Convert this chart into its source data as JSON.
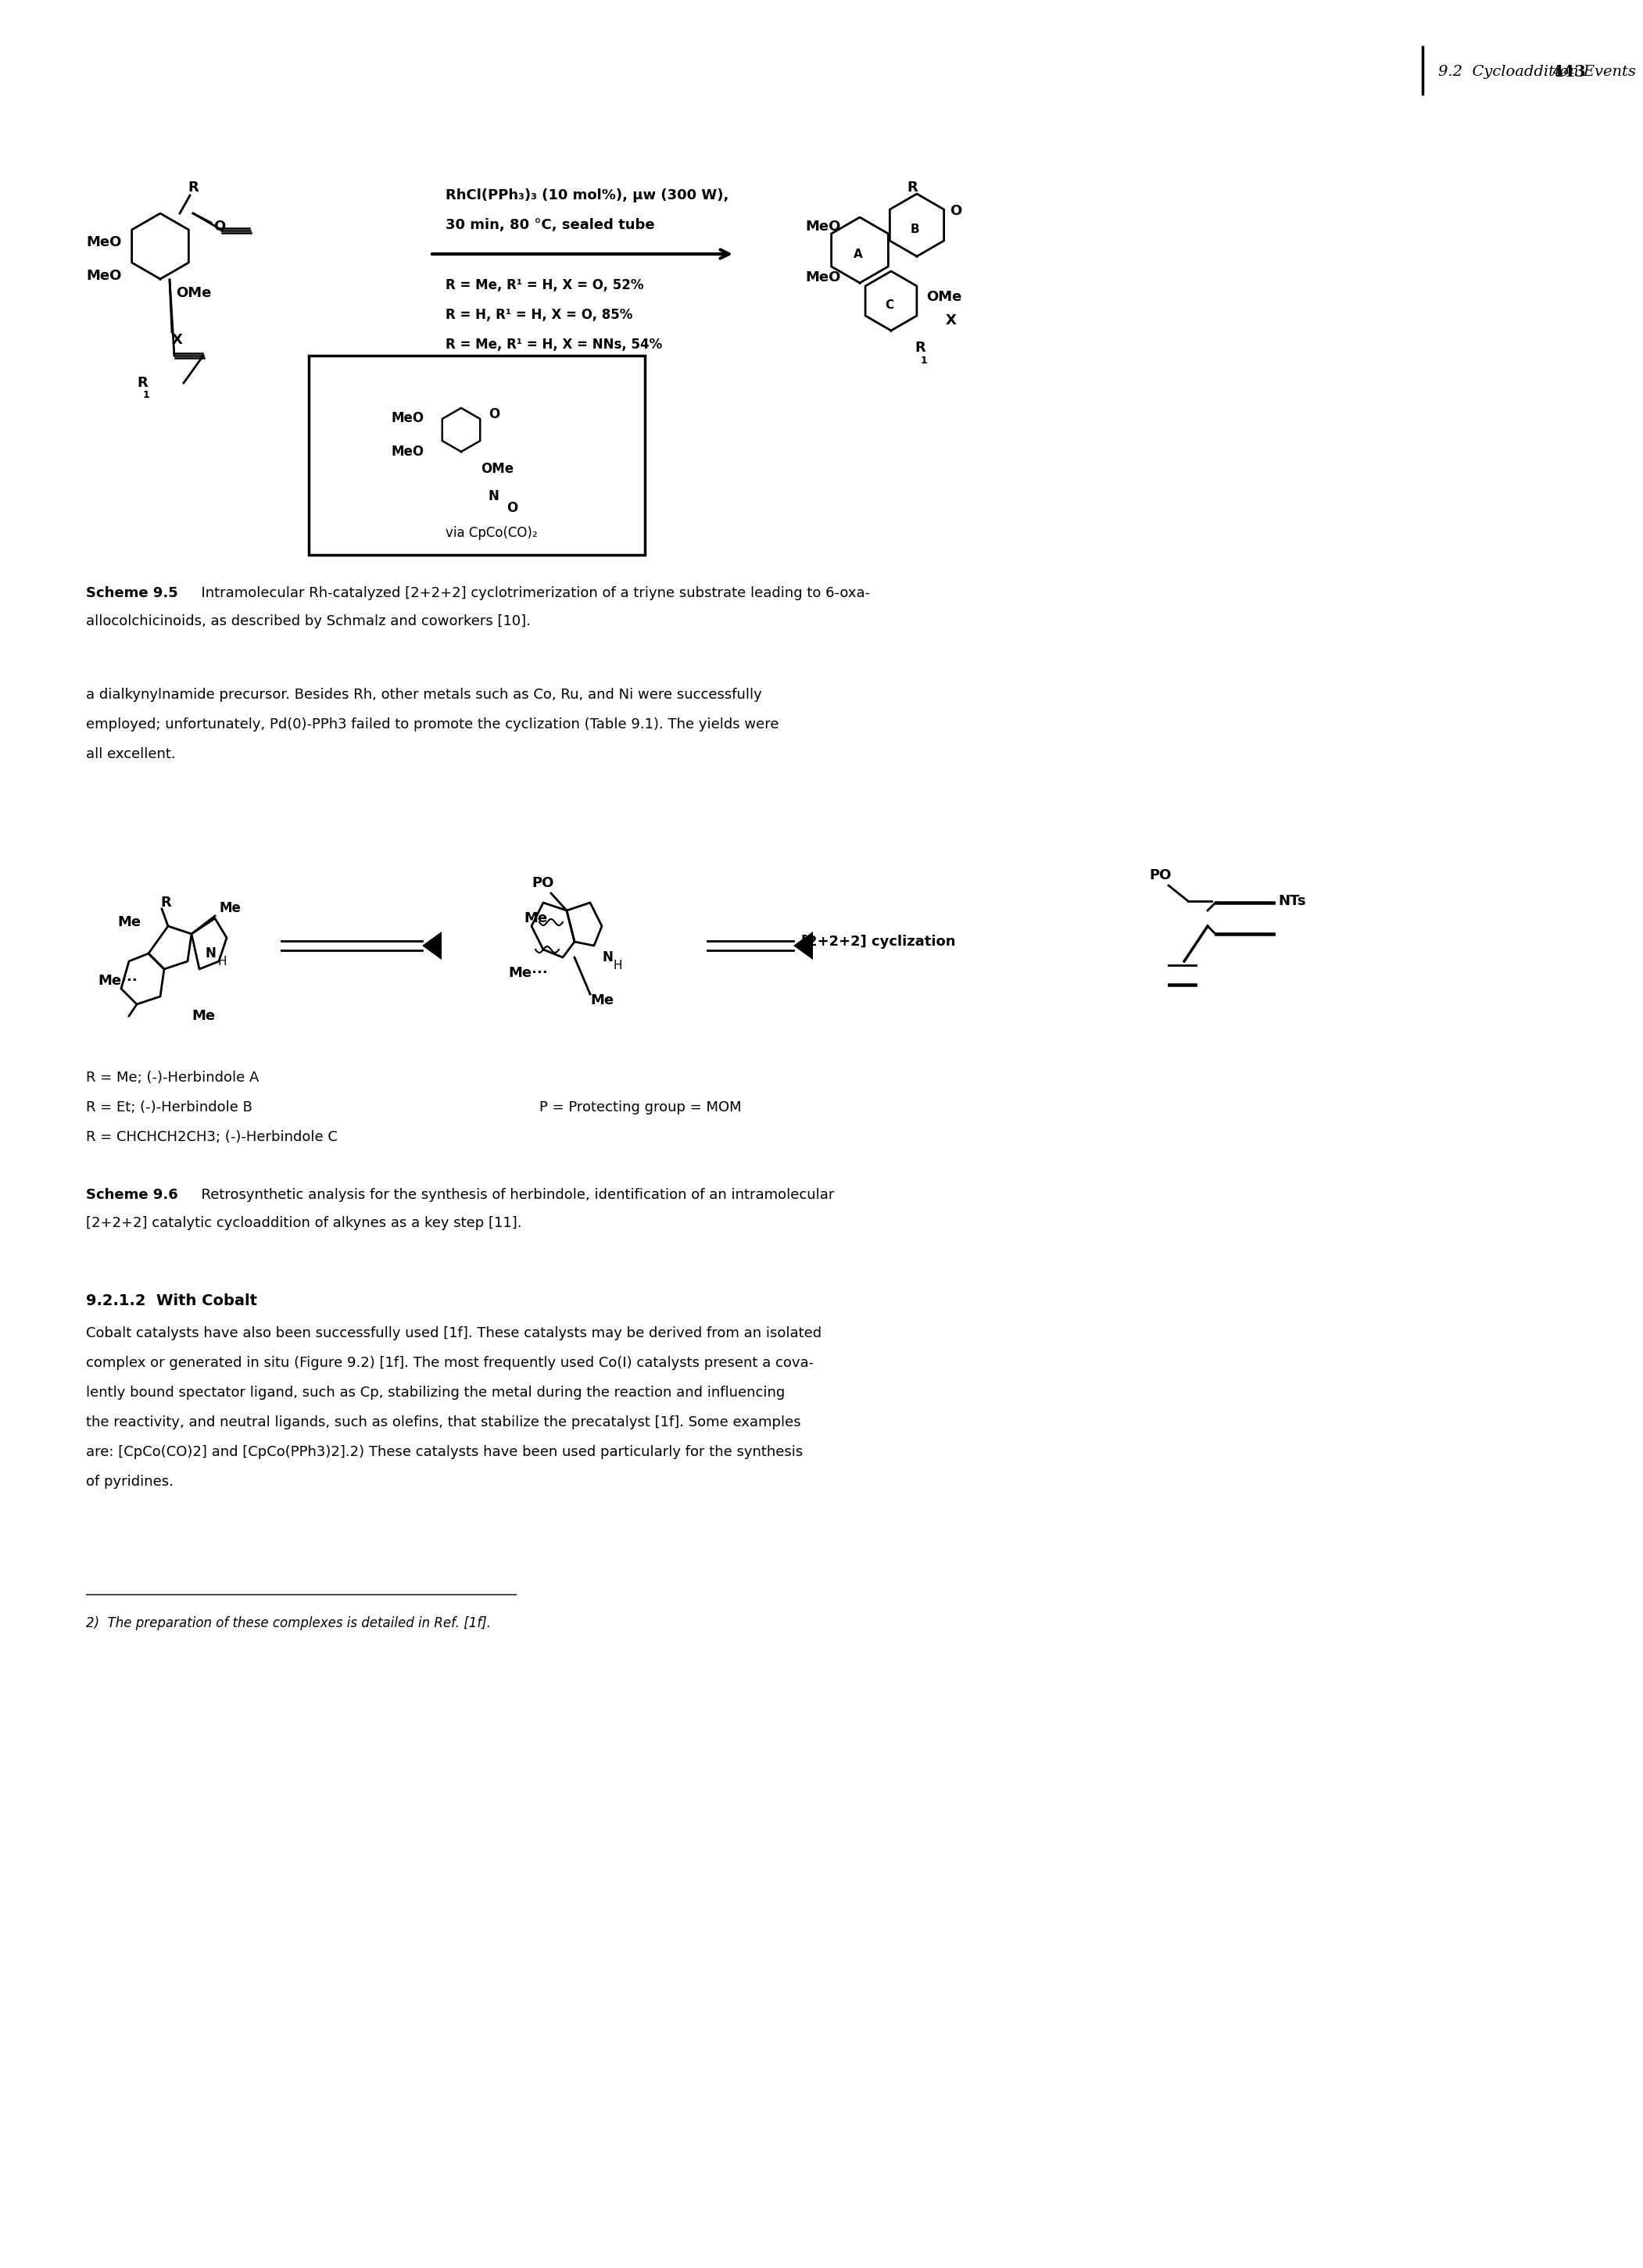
{
  "page_header_italic": "9.2  Cycloaddition Events",
  "page_number": "443",
  "background_color": "#ffffff",
  "scheme95_label": "Scheme 9.5",
  "scheme95_caption": "  Intramolecular Rh-catalyzed [2+2+2] cyclotrimerization of a triyne substrate leading to 6-oxa-",
  "scheme95_caption2": "allocolchicinoids, as described by Schmalz and coworkers [10].",
  "para_line1": "a dialkynylnamide precursor. Besides Rh, other metals such as Co, Ru, and Ni were successfully",
  "para_line2": "employed; unfortunately, Pd(0)-PPh3 failed to promote the cyclization (Table 9.1). The yields were",
  "para_line3": "all excellent.",
  "scheme96_label": "Scheme 9.6",
  "scheme96_caption": "  Retrosynthetic analysis for the synthesis of herbindole, identification of an intramolecular",
  "scheme96_caption2": "[2+2+2] catalytic cycloaddition of alkynes as a key step [11].",
  "herbindole_A": "R = Me; (-)-Herbindole A",
  "herbindole_B": "R = Et; (-)-Herbindole B",
  "herbindole_C": "R = CHCHCH2CH3; (-)-Herbindole C",
  "protecting_group": "P = Protecting group = MOM",
  "section_title": "9.2.1.2  With Cobalt",
  "body_line1": "Cobalt catalysts have also been successfully used [1f]. These catalysts may be derived from an isolated",
  "body_line2": "complex or generated in situ (Figure 9.2) [1f]. The most frequently used Co(I) catalysts present a cova-",
  "body_line3": "lently bound spectator ligand, such as Cp, stabilizing the metal during the reaction and influencing",
  "body_line4": "the reactivity, and neutral ligands, such as olefins, that stabilize the precatalyst [1f]. Some examples",
  "body_line5": "are: [CpCo(CO)2] and [CpCo(PPh3)2].2) These catalysts have been used particularly for the synthesis",
  "body_line6": "of pyridines.",
  "footnote": "2)  The preparation of these complexes is detailed in Ref. [1f]."
}
